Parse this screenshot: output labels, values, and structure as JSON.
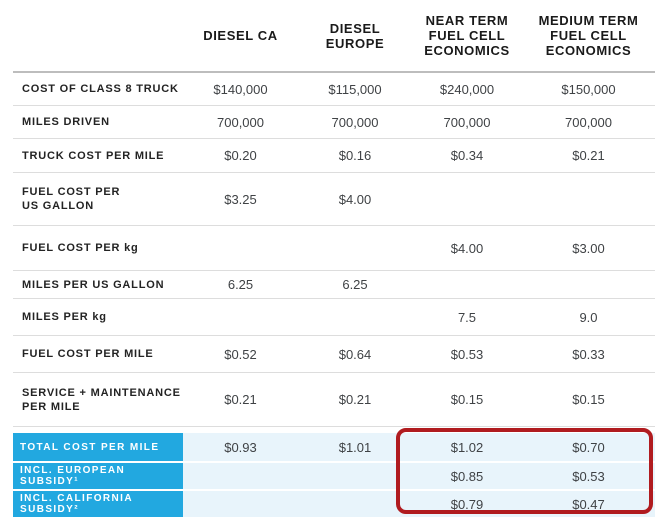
{
  "table": {
    "columns": [
      "",
      "DIESEL CA",
      "DIESEL\nEUROPE",
      "NEAR TERM\nFUEL CELL\nECONOMICS",
      "MEDIUM TERM\nFUEL CELL\nECONOMICS"
    ],
    "rows": [
      {
        "label": "COST OF CLASS 8 TRUCK",
        "values": [
          "$140,000",
          "$115,000",
          "$240,000",
          "$150,000"
        ]
      },
      {
        "label": "MILES DRIVEN",
        "values": [
          "700,000",
          "700,000",
          "700,000",
          "700,000"
        ]
      },
      {
        "label": "TRUCK COST PER MILE",
        "values": [
          "$0.20",
          "$0.16",
          "$0.34",
          "$0.21"
        ]
      },
      {
        "label": "FUEL COST PER\nUS GALLON",
        "values": [
          "$3.25",
          "$4.00",
          "",
          ""
        ]
      },
      {
        "label": "FUEL COST PER kg",
        "values": [
          "",
          "",
          "$4.00",
          "$3.00"
        ]
      },
      {
        "label": "MILES PER US GALLON",
        "values": [
          "6.25",
          "6.25",
          "",
          ""
        ]
      },
      {
        "label": "MILES PER kg",
        "values": [
          "",
          "",
          "7.5",
          "9.0"
        ]
      },
      {
        "label": "FUEL COST PER MILE",
        "values": [
          "$0.52",
          "$0.64",
          "$0.53",
          "$0.33"
        ]
      },
      {
        "label": "SERVICE + MAINTENANCE\nPER MILE",
        "values": [
          "$0.21",
          "$0.21",
          "$0.15",
          "$0.15"
        ]
      }
    ],
    "summary_rows": [
      {
        "label": "TOTAL COST PER MILE",
        "values": [
          "$0.93",
          "$1.01",
          "$1.02",
          "$0.70"
        ]
      },
      {
        "label": "INCL. EUROPEAN SUBSIDY¹",
        "values": [
          "",
          "",
          "$0.85",
          "$0.53"
        ]
      },
      {
        "label": "INCL. CALIFORNIA SUBSIDY²",
        "values": [
          "",
          "",
          "$0.79",
          "$0.47"
        ]
      }
    ]
  },
  "colors": {
    "accent_blue": "#22a8e0",
    "summary_row_bg": "#e8f4fb",
    "highlight_red": "#b01b1f"
  }
}
